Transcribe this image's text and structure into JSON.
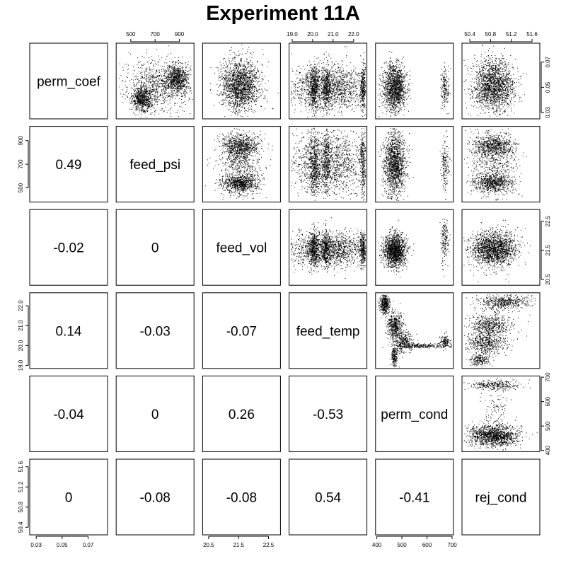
{
  "title": "Experiment 11A",
  "chart_data": {
    "type": "scatter-matrix",
    "title": "Experiment 11A",
    "variables": [
      "perm_coef",
      "feed_psi",
      "feed_vol",
      "feed_temp",
      "perm_cond",
      "rej_cond"
    ],
    "ranges": {
      "perm_coef": [
        0.025,
        0.085
      ],
      "feed_psi": [
        380,
        1020
      ],
      "feed_vol": [
        20.3,
        22.9
      ],
      "feed_temp": [
        18.85,
        22.65
      ],
      "perm_cond": [
        395,
        705
      ],
      "rej_cond": [
        50.25,
        51.75
      ]
    },
    "ticks": {
      "perm_coef": [
        "0.03",
        "0.05",
        "0.07"
      ],
      "feed_psi": [
        "500",
        "700",
        "900"
      ],
      "feed_vol": [
        "20.5",
        "21.5",
        "22.5"
      ],
      "feed_temp": [
        "19.0",
        "20.0",
        "21.0",
        "22.0"
      ],
      "perm_cond": [
        "400",
        "500",
        "600",
        "700"
      ],
      "rej_cond": [
        "50.4",
        "50.8",
        "51.2",
        "51.6"
      ]
    },
    "correlations": [
      {
        "row": "feed_psi",
        "col": "perm_coef",
        "value": "0.49"
      },
      {
        "row": "feed_vol",
        "col": "perm_coef",
        "value": "-0.02"
      },
      {
        "row": "feed_vol",
        "col": "feed_psi",
        "value": "0"
      },
      {
        "row": "feed_temp",
        "col": "perm_coef",
        "value": "0.14"
      },
      {
        "row": "feed_temp",
        "col": "feed_psi",
        "value": "-0.03"
      },
      {
        "row": "feed_temp",
        "col": "feed_vol",
        "value": "-0.07"
      },
      {
        "row": "perm_cond",
        "col": "perm_coef",
        "value": "-0.04"
      },
      {
        "row": "perm_cond",
        "col": "feed_psi",
        "value": "0"
      },
      {
        "row": "perm_cond",
        "col": "feed_vol",
        "value": "0.26"
      },
      {
        "row": "perm_cond",
        "col": "feed_temp",
        "value": "-0.53"
      },
      {
        "row": "rej_cond",
        "col": "perm_coef",
        "value": "0"
      },
      {
        "row": "rej_cond",
        "col": "feed_psi",
        "value": "-0.08"
      },
      {
        "row": "rej_cond",
        "col": "feed_vol",
        "value": "-0.08"
      },
      {
        "row": "rej_cond",
        "col": "feed_temp",
        "value": "0.54"
      },
      {
        "row": "rej_cond",
        "col": "perm_cond",
        "value": "-0.41"
      }
    ],
    "scatter_clusters": [
      {
        "x": "feed_psi",
        "y": "perm_coef",
        "clusters": [
          {
            "cx": 590,
            "cy": 0.041,
            "sx": 40,
            "sy": 0.005,
            "n": 700
          },
          {
            "cx": 880,
            "cy": 0.057,
            "sx": 45,
            "sy": 0.006,
            "n": 800
          },
          {
            "cx": 720,
            "cy": 0.052,
            "sx": 130,
            "sy": 0.011,
            "n": 800
          }
        ]
      },
      {
        "x": "feed_vol",
        "y": "perm_coef",
        "clusters": [
          {
            "cx": 21.55,
            "cy": 0.052,
            "sx": 0.32,
            "sy": 0.01,
            "n": 1800
          }
        ]
      },
      {
        "x": "feed_temp",
        "y": "perm_coef",
        "clusters": [
          {
            "cx": 20.75,
            "cy": 0.05,
            "sx": 1.0,
            "sy": 0.009,
            "n": 1600
          },
          {
            "cx": 20.05,
            "cy": 0.05,
            "sx": 0.12,
            "sy": 0.009,
            "n": 400
          },
          {
            "cx": 20.65,
            "cy": 0.05,
            "sx": 0.1,
            "sy": 0.009,
            "n": 300
          },
          {
            "cx": 22.45,
            "cy": 0.05,
            "sx": 0.07,
            "sy": 0.009,
            "n": 300
          }
        ]
      },
      {
        "x": "perm_cond",
        "y": "perm_coef",
        "clusters": [
          {
            "cx": 470,
            "cy": 0.05,
            "sx": 22,
            "sy": 0.009,
            "n": 1500
          },
          {
            "cx": 670,
            "cy": 0.05,
            "sx": 8,
            "sy": 0.008,
            "n": 180
          }
        ]
      },
      {
        "x": "rej_cond",
        "y": "perm_coef",
        "clusters": [
          {
            "cx": 50.85,
            "cy": 0.052,
            "sx": 0.2,
            "sy": 0.01,
            "n": 1800
          }
        ]
      },
      {
        "x": "feed_vol",
        "y": "feed_psi",
        "clusters": [
          {
            "cx": 21.55,
            "cy": 860,
            "sx": 0.3,
            "sy": 50,
            "n": 700
          },
          {
            "cx": 21.55,
            "cy": 540,
            "sx": 0.3,
            "sy": 35,
            "n": 700
          },
          {
            "cx": 21.55,
            "cy": 700,
            "sx": 0.35,
            "sy": 140,
            "n": 700
          }
        ]
      },
      {
        "x": "feed_temp",
        "y": "feed_psi",
        "clusters": [
          {
            "cx": 20.75,
            "cy": 710,
            "sx": 1.0,
            "sy": 140,
            "n": 1500
          },
          {
            "cx": 20.05,
            "cy": 710,
            "sx": 0.12,
            "sy": 140,
            "n": 400
          },
          {
            "cx": 20.65,
            "cy": 710,
            "sx": 0.1,
            "sy": 140,
            "n": 300
          },
          {
            "cx": 22.45,
            "cy": 710,
            "sx": 0.07,
            "sy": 140,
            "n": 300
          }
        ]
      },
      {
        "x": "perm_cond",
        "y": "feed_psi",
        "clusters": [
          {
            "cx": 470,
            "cy": 710,
            "sx": 22,
            "sy": 140,
            "n": 1500
          },
          {
            "cx": 670,
            "cy": 710,
            "sx": 8,
            "sy": 130,
            "n": 180
          }
        ]
      },
      {
        "x": "rej_cond",
        "y": "feed_psi",
        "clusters": [
          {
            "cx": 50.85,
            "cy": 860,
            "sx": 0.2,
            "sy": 50,
            "n": 700
          },
          {
            "cx": 50.85,
            "cy": 540,
            "sx": 0.2,
            "sy": 35,
            "n": 600
          },
          {
            "cx": 50.85,
            "cy": 700,
            "sx": 0.22,
            "sy": 140,
            "n": 600
          }
        ]
      },
      {
        "x": "feed_temp",
        "y": "feed_vol",
        "clusters": [
          {
            "cx": 20.75,
            "cy": 21.55,
            "sx": 1.0,
            "sy": 0.3,
            "n": 1500
          },
          {
            "cx": 20.05,
            "cy": 21.55,
            "sx": 0.12,
            "sy": 0.3,
            "n": 400
          },
          {
            "cx": 20.65,
            "cy": 21.55,
            "sx": 0.1,
            "sy": 0.3,
            "n": 300
          },
          {
            "cx": 22.45,
            "cy": 21.55,
            "sx": 0.07,
            "sy": 0.3,
            "n": 300
          }
        ]
      },
      {
        "x": "perm_cond",
        "y": "feed_vol",
        "clusters": [
          {
            "cx": 470,
            "cy": 21.5,
            "sx": 22,
            "sy": 0.28,
            "n": 1500
          },
          {
            "cx": 670,
            "cy": 21.85,
            "sx": 8,
            "sy": 0.35,
            "n": 180
          }
        ]
      },
      {
        "x": "rej_cond",
        "y": "feed_vol",
        "clusters": [
          {
            "cx": 50.85,
            "cy": 21.55,
            "sx": 0.22,
            "sy": 0.3,
            "n": 1800
          }
        ]
      },
      {
        "x": "perm_cond",
        "y": "feed_temp",
        "clusters": [
          {
            "cx": 430,
            "cy": 22.1,
            "sx": 10,
            "sy": 0.25,
            "n": 400
          },
          {
            "cx": 470,
            "cy": 21.0,
            "sx": 15,
            "sy": 0.35,
            "n": 500
          },
          {
            "cx": 505,
            "cy": 20.2,
            "sx": 18,
            "sy": 0.25,
            "n": 300
          },
          {
            "cx": 580,
            "cy": 20.0,
            "sx": 50,
            "sy": 0.06,
            "n": 250
          },
          {
            "cx": 670,
            "cy": 20.2,
            "sx": 10,
            "sy": 0.15,
            "n": 150
          },
          {
            "cx": 470,
            "cy": 19.4,
            "sx": 6,
            "sy": 0.3,
            "n": 200
          }
        ]
      },
      {
        "x": "rej_cond",
        "y": "feed_temp",
        "clusters": [
          {
            "cx": 51.05,
            "cy": 22.2,
            "sx": 0.25,
            "sy": 0.2,
            "n": 500
          },
          {
            "cx": 50.8,
            "cy": 21.0,
            "sx": 0.2,
            "sy": 0.3,
            "n": 600
          },
          {
            "cx": 50.7,
            "cy": 20.1,
            "sx": 0.2,
            "sy": 0.25,
            "n": 500
          },
          {
            "cx": 50.6,
            "cy": 19.3,
            "sx": 0.1,
            "sy": 0.15,
            "n": 200
          }
        ]
      },
      {
        "x": "rej_cond",
        "y": "perm_cond",
        "clusters": [
          {
            "cx": 50.85,
            "cy": 462,
            "sx": 0.25,
            "sy": 22,
            "n": 1300
          },
          {
            "cx": 50.85,
            "cy": 670,
            "sx": 0.25,
            "sy": 10,
            "n": 300
          },
          {
            "cx": 50.9,
            "cy": 560,
            "sx": 0.15,
            "sy": 55,
            "n": 120
          }
        ]
      }
    ]
  }
}
